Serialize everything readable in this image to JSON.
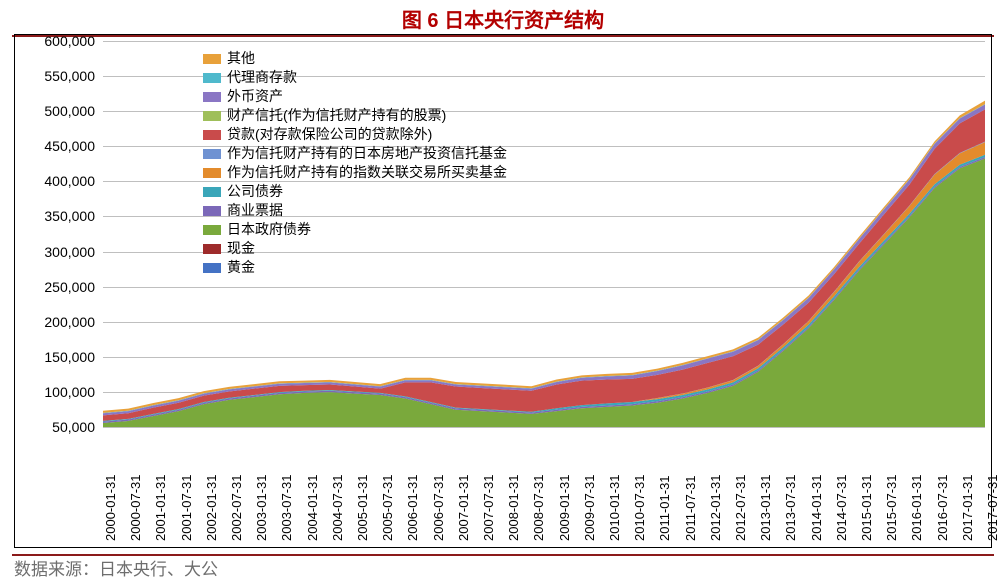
{
  "title": "图 6    日本央行资产结构",
  "source": "数据来源：日本央行、大公",
  "chart": {
    "type": "stacked-area",
    "background_color": "#ffffff",
    "grid_color": "#bfbfbf",
    "frame_color": "#000000",
    "title_color": "#b30000",
    "rule_color": "#8b1a1a",
    "source_color": "#6e6e6e",
    "font_sizes": {
      "title": 20,
      "axis": 14,
      "legend": 14,
      "source": 17,
      "xaxis": 13
    },
    "ylim": [
      50000,
      600000
    ],
    "ytick_step": 50000,
    "yticks": [
      50000,
      100000,
      150000,
      200000,
      250000,
      300000,
      350000,
      400000,
      450000,
      500000,
      550000,
      600000
    ],
    "ytick_labels": [
      "50,000",
      "100,000",
      "150,000",
      "200,000",
      "250,000",
      "300,000",
      "350,000",
      "400,000",
      "450,000",
      "500,000",
      "550,000",
      "600,000"
    ],
    "x_categories": [
      "2000-01-31",
      "2000-07-31",
      "2001-01-31",
      "2001-07-31",
      "2002-01-31",
      "2002-07-31",
      "2003-01-31",
      "2003-07-31",
      "2004-01-31",
      "2004-07-31",
      "2005-01-31",
      "2005-07-31",
      "2006-01-31",
      "2006-07-31",
      "2007-01-31",
      "2007-07-31",
      "2008-01-31",
      "2008-07-31",
      "2009-01-31",
      "2009-07-31",
      "2010-01-31",
      "2010-07-31",
      "2011-01-31",
      "2011-07-31",
      "2012-01-31",
      "2012-07-31",
      "2013-01-31",
      "2013-07-31",
      "2014-01-31",
      "2014-07-31",
      "2015-01-31",
      "2015-07-31",
      "2016-01-31",
      "2016-07-31",
      "2017-01-31",
      "2017-07-31"
    ],
    "series": [
      {
        "name": "黄金",
        "color": "#4472c4",
        "values": [
          441,
          441,
          441,
          441,
          441,
          441,
          441,
          441,
          441,
          441,
          441,
          441,
          441,
          441,
          441,
          441,
          441,
          441,
          441,
          441,
          441,
          441,
          441,
          441,
          441,
          441,
          441,
          441,
          441,
          441,
          441,
          441,
          441,
          441,
          441,
          441
        ]
      },
      {
        "name": "现金",
        "color": "#9e2b2b",
        "values": [
          200,
          200,
          200,
          200,
          200,
          200,
          200,
          200,
          200,
          200,
          200,
          200,
          200,
          200,
          200,
          200,
          200,
          200,
          200,
          200,
          200,
          200,
          200,
          200,
          200,
          200,
          200,
          200,
          200,
          200,
          200,
          200,
          200,
          200,
          200,
          200
        ]
      },
      {
        "name": "日本政府债券",
        "color": "#7aa93c",
        "values": [
          55000,
          58000,
          65000,
          72000,
          82000,
          88000,
          92000,
          96000,
          98000,
          99000,
          97000,
          95000,
          90000,
          82000,
          74000,
          72000,
          70000,
          68000,
          72000,
          76000,
          78000,
          80000,
          84000,
          90000,
          98000,
          108000,
          128000,
          158000,
          190000,
          230000,
          272000,
          310000,
          348000,
          390000,
          418000,
          432000
        ]
      },
      {
        "name": "商业票据",
        "color": "#7b68b8",
        "values": [
          2000,
          2000,
          2000,
          2000,
          2000,
          2000,
          2000,
          2000,
          2000,
          2000,
          2000,
          2000,
          2000,
          2000,
          2000,
          2000,
          2000,
          2000,
          2000,
          2000,
          2000,
          2000,
          2000,
          2000,
          2000,
          2000,
          2000,
          2000,
          2000,
          2000,
          2000,
          2000,
          2000,
          2000,
          2000,
          2000
        ]
      },
      {
        "name": "公司债券",
        "color": "#3aa6b9",
        "values": [
          1000,
          1000,
          1000,
          1000,
          1000,
          1000,
          1000,
          1000,
          1000,
          1000,
          1000,
          1000,
          1000,
          1000,
          1000,
          1000,
          1000,
          1000,
          2000,
          2500,
          3000,
          3000,
          3000,
          3000,
          3000,
          3000,
          3000,
          3200,
          3200,
          3200,
          3200,
          3200,
          3200,
          3200,
          3200,
          3200
        ]
      },
      {
        "name": "作为信托财产持有的指数关联交易所买卖基金",
        "color": "#e38b2c",
        "values": [
          0,
          0,
          0,
          0,
          0,
          0,
          0,
          0,
          0,
          0,
          0,
          0,
          0,
          0,
          0,
          0,
          0,
          0,
          0,
          0,
          0,
          0,
          1500,
          2000,
          2500,
          3000,
          3500,
          4000,
          5000,
          6000,
          7500,
          9000,
          11000,
          14000,
          16000,
          18000
        ]
      },
      {
        "name": "作为信托财产持有的日本房地产投资信托基金",
        "color": "#6f92d2",
        "values": [
          0,
          0,
          0,
          0,
          0,
          0,
          0,
          0,
          0,
          0,
          0,
          0,
          0,
          0,
          0,
          0,
          0,
          0,
          0,
          0,
          0,
          0,
          100,
          150,
          200,
          250,
          300,
          350,
          400,
          450,
          500,
          550,
          600,
          650,
          700,
          750
        ]
      },
      {
        "name": "贷款(对存款保险公司的贷款除外)",
        "color": "#c94b4b",
        "values": [
          8000,
          8000,
          9000,
          9000,
          9000,
          9000,
          9000,
          9000,
          8000,
          8000,
          7000,
          6000,
          20000,
          28000,
          30000,
          30000,
          30000,
          30000,
          34000,
          35000,
          34000,
          33000,
          33000,
          34000,
          35000,
          34000,
          30000,
          28000,
          26000,
          25000,
          25000,
          28000,
          30000,
          36000,
          42000,
          46000
        ]
      },
      {
        "name": "财产信托(作为信托财产持有的股票)",
        "color": "#9fbf5a",
        "values": [
          0,
          0,
          0,
          0,
          0,
          0,
          0,
          0,
          0,
          0,
          0,
          0,
          0,
          0,
          0,
          0,
          0,
          0,
          0,
          0,
          0,
          0,
          0,
          0,
          0,
          0,
          0,
          0,
          0,
          0,
          0,
          0,
          0,
          0,
          0,
          0
        ]
      },
      {
        "name": "外币资产",
        "color": "#8a76c4",
        "values": [
          3000,
          3000,
          3000,
          3000,
          3000,
          3000,
          3000,
          3000,
          3000,
          3000,
          3000,
          3000,
          3000,
          3000,
          3000,
          3000,
          3000,
          3000,
          3500,
          4000,
          4500,
          5000,
          5500,
          6000,
          6200,
          6300,
          6400,
          6500,
          6600,
          6700,
          6800,
          6900,
          7000,
          7000,
          7000,
          7000
        ]
      },
      {
        "name": "代理商存款",
        "color": "#4fb9cc",
        "values": [
          500,
          500,
          500,
          500,
          500,
          500,
          500,
          500,
          500,
          500,
          500,
          500,
          500,
          500,
          500,
          500,
          500,
          500,
          500,
          500,
          500,
          500,
          500,
          500,
          500,
          500,
          500,
          500,
          500,
          500,
          500,
          500,
          500,
          500,
          500,
          500
        ]
      },
      {
        "name": "其他",
        "color": "#e8a13a",
        "values": [
          3000,
          3000,
          3000,
          3000,
          3000,
          3000,
          3000,
          3000,
          3000,
          3000,
          3000,
          3000,
          3000,
          3000,
          3000,
          3000,
          3000,
          3000,
          3000,
          3000,
          3000,
          3000,
          3000,
          3000,
          3000,
          3000,
          3000,
          3000,
          3000,
          3000,
          3000,
          3000,
          3000,
          3000,
          4000,
          5000
        ]
      }
    ],
    "legend_order": [
      "其他",
      "代理商存款",
      "外币资产",
      "财产信托(作为信托财产持有的股票)",
      "贷款(对存款保险公司的贷款除外)",
      "作为信托财产持有的日本房地产投资信托基金",
      "作为信托财产持有的指数关联交易所买卖基金",
      "公司债券",
      "商业票据",
      "日本政府债券",
      "现金",
      "黄金"
    ]
  }
}
